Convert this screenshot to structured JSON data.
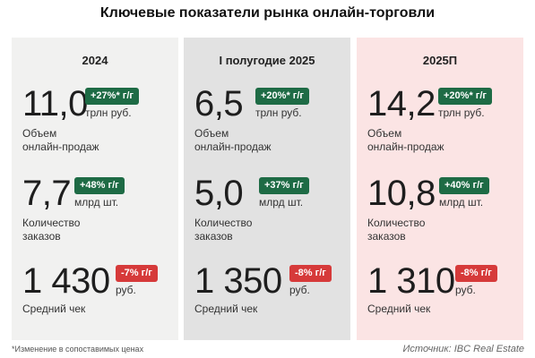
{
  "title": "Ключевые показатели рынка онлайн-торговли",
  "columns": [
    {
      "header": "2024",
      "volume": {
        "value": "11,0",
        "badge": "+27%* г/г",
        "unit": "трлн руб.",
        "label_1": "Объем",
        "label_2": "онлайн-продаж"
      },
      "orders": {
        "value": "7,7",
        "badge": "+48% г/г",
        "unit": "млрд шт.",
        "label_1": "Количество",
        "label_2": "заказов"
      },
      "check": {
        "value": "1 430",
        "badge": "-7% г/г",
        "unit": "руб.",
        "label": "Средний чек"
      }
    },
    {
      "header": "I полугодие 2025",
      "volume": {
        "value": "6,5",
        "badge": "+20%* г/г",
        "unit": "трлн руб.",
        "label_1": "Объем",
        "label_2": "онлайн-продаж"
      },
      "orders": {
        "value": "5,0",
        "badge": "+37% г/г",
        "unit": "млрд шт.",
        "label_1": "Количество",
        "label_2": "заказов"
      },
      "check": {
        "value": "1 350",
        "badge": "-8% г/г",
        "unit": "руб.",
        "label": "Средний чек"
      }
    },
    {
      "header": "2025П",
      "volume": {
        "value": "14,2",
        "badge": "+20%* г/г",
        "unit": "трлн руб.",
        "label_1": "Объем",
        "label_2": "онлайн-продаж"
      },
      "orders": {
        "value": "10,8",
        "badge": "+40% г/г",
        "unit": "млрд шт.",
        "label_1": "Количество",
        "label_2": "заказов"
      },
      "check": {
        "value": "1 310",
        "badge": "-8% г/г",
        "unit": "руб.",
        "label": "Средний чек"
      }
    }
  ],
  "colors": {
    "badge_up": "#1e6b45",
    "badge_down": "#d63a3a",
    "col_1_bg": "#f1f1f0",
    "col_2_bg": "#e2e2e2",
    "col_3_bg": "#fbe4e4"
  },
  "footnote": "*Изменение в сопоставимых ценах",
  "source": "Источник: IBC Real Estate"
}
